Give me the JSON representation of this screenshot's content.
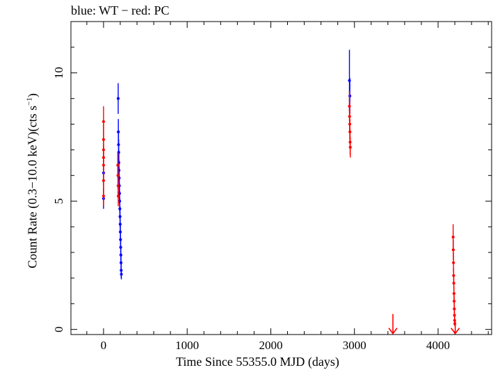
{
  "chart_data": {
    "type": "scatter",
    "title": "blue: WT − red: PC",
    "xlabel": "Time Since 55355.0 MJD (days)",
    "ylabel_main": "Count Rate (0.3−10.0 keV)(cts s",
    "ylabel_sup": "−1",
    "ylabel_end": ")",
    "xlim": [
      -390,
      4640
    ],
    "ylim": [
      -0.2,
      12.0
    ],
    "x_ticks": [
      0,
      1000,
      2000,
      3000,
      4000
    ],
    "x_tick_labels": [
      "0",
      "1000",
      "2000",
      "3000",
      "4000"
    ],
    "y_ticks": [
      0,
      5,
      10
    ],
    "y_tick_labels": [
      "0",
      "5",
      "10"
    ],
    "series": [
      {
        "color": "#0000ff",
        "points": [
          {
            "x": 0,
            "y": 6.1,
            "err": 0.5
          },
          {
            "x": 0,
            "y": 5.1,
            "err": 0.4
          },
          {
            "x": 175,
            "y": 9.0,
            "err": 0.6
          },
          {
            "x": 177,
            "y": 7.7,
            "err": 0.5
          },
          {
            "x": 179,
            "y": 7.2,
            "err": 0.5
          },
          {
            "x": 181,
            "y": 6.9,
            "err": 0.5
          },
          {
            "x": 183,
            "y": 6.5,
            "err": 0.5
          },
          {
            "x": 185,
            "y": 6.2,
            "err": 0.4
          },
          {
            "x": 187,
            "y": 5.9,
            "err": 0.4
          },
          {
            "x": 189,
            "y": 5.6,
            "err": 0.4
          },
          {
            "x": 191,
            "y": 5.3,
            "err": 0.4
          },
          {
            "x": 193,
            "y": 5.0,
            "err": 0.4
          },
          {
            "x": 195,
            "y": 4.7,
            "err": 0.4
          },
          {
            "x": 197,
            "y": 4.4,
            "err": 0.4
          },
          {
            "x": 199,
            "y": 4.1,
            "err": 0.3
          },
          {
            "x": 201,
            "y": 3.8,
            "err": 0.3
          },
          {
            "x": 203,
            "y": 3.5,
            "err": 0.3
          },
          {
            "x": 205,
            "y": 3.2,
            "err": 0.3
          },
          {
            "x": 207,
            "y": 2.9,
            "err": 0.3
          },
          {
            "x": 209,
            "y": 2.6,
            "err": 0.3
          },
          {
            "x": 211,
            "y": 2.3,
            "err": 0.3
          },
          {
            "x": 213,
            "y": 2.15,
            "err": 0.2
          },
          {
            "x": 2940,
            "y": 9.7,
            "err": 1.2
          },
          {
            "x": 2945,
            "y": 9.1,
            "err": 0.7
          }
        ]
      },
      {
        "color": "#ff0000",
        "points": [
          {
            "x": 0,
            "y": 8.1,
            "err": 0.6
          },
          {
            "x": 0,
            "y": 7.4,
            "err": 0.6
          },
          {
            "x": 0,
            "y": 7.0,
            "err": 0.5
          },
          {
            "x": 0,
            "y": 6.7,
            "err": 0.5
          },
          {
            "x": 0,
            "y": 6.4,
            "err": 0.5
          },
          {
            "x": 0,
            "y": 5.8,
            "err": 0.5
          },
          {
            "x": 0,
            "y": 5.2,
            "err": 0.4
          },
          {
            "x": 170,
            "y": 6.4,
            "err": 0.5
          },
          {
            "x": 172,
            "y": 6.0,
            "err": 0.5
          },
          {
            "x": 174,
            "y": 5.6,
            "err": 0.5
          },
          {
            "x": 176,
            "y": 5.2,
            "err": 0.4
          },
          {
            "x": 2940,
            "y": 8.7,
            "err": 0.6
          },
          {
            "x": 2942,
            "y": 8.3,
            "err": 0.6
          },
          {
            "x": 2944,
            "y": 8.0,
            "err": 0.6
          },
          {
            "x": 2946,
            "y": 7.7,
            "err": 0.5
          },
          {
            "x": 2948,
            "y": 7.3,
            "err": 0.5
          },
          {
            "x": 2950,
            "y": 7.1,
            "err": 0.4
          },
          {
            "x": 4180,
            "y": 3.6,
            "err": 0.5
          },
          {
            "x": 4182,
            "y": 3.1,
            "err": 0.4
          },
          {
            "x": 4184,
            "y": 2.6,
            "err": 0.4
          },
          {
            "x": 4186,
            "y": 2.1,
            "err": 0.3
          },
          {
            "x": 4188,
            "y": 1.8,
            "err": 0.3
          },
          {
            "x": 4190,
            "y": 1.4,
            "err": 0.3
          },
          {
            "x": 4192,
            "y": 1.1,
            "err": 0.25
          },
          {
            "x": 4194,
            "y": 0.8,
            "err": 0.25
          },
          {
            "x": 4196,
            "y": 0.55,
            "err": 0.2
          },
          {
            "x": 4198,
            "y": 0.35,
            "err": 0.15
          },
          {
            "x": 4200,
            "y": 0.22,
            "err": 0.1
          }
        ]
      }
    ],
    "upper_limits": [
      {
        "color": "#ff0000",
        "x": 3460,
        "y": 0.6
      },
      {
        "color": "#ff0000",
        "x": 4205,
        "y": 0.3
      }
    ]
  }
}
